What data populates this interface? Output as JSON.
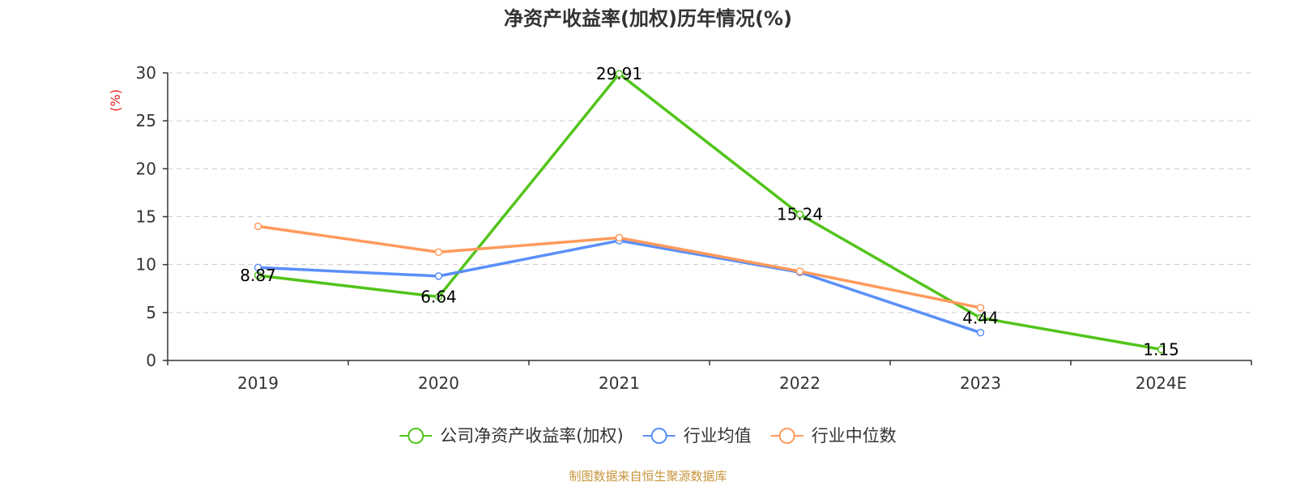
{
  "chart_data": {
    "type": "line",
    "title": "净资产收益率(加权)历年情况(%)",
    "ylabel": "(%)",
    "categories": [
      "2019",
      "2020",
      "2021",
      "2022",
      "2023",
      "2024E"
    ],
    "ylim": [
      0,
      30
    ],
    "yticks": [
      0,
      5,
      10,
      15,
      20,
      25,
      30
    ],
    "grid": true,
    "legend_position": "bottom",
    "series": [
      {
        "name": "公司净资产收益率(加权)",
        "color": "#52c41a",
        "values": [
          8.87,
          6.64,
          29.91,
          15.24,
          4.44,
          1.15
        ],
        "labels": [
          "8.87",
          "6.64",
          "29.91",
          "15.24",
          "4.44",
          "1.15"
        ]
      },
      {
        "name": "行业均值",
        "color": "#5b8ff9",
        "values": [
          9.7,
          8.8,
          12.5,
          9.2,
          2.9,
          null
        ]
      },
      {
        "name": "行业中位数",
        "color": "#ff9a5c",
        "values": [
          14.0,
          11.3,
          12.8,
          9.3,
          5.5,
          null
        ]
      }
    ]
  },
  "source_text": "制图数据来自恒生聚源数据库",
  "colors": {
    "axis": "#333333",
    "grid": "#cccccc",
    "ylabel": "#e8201c",
    "source": "#c8963c"
  }
}
